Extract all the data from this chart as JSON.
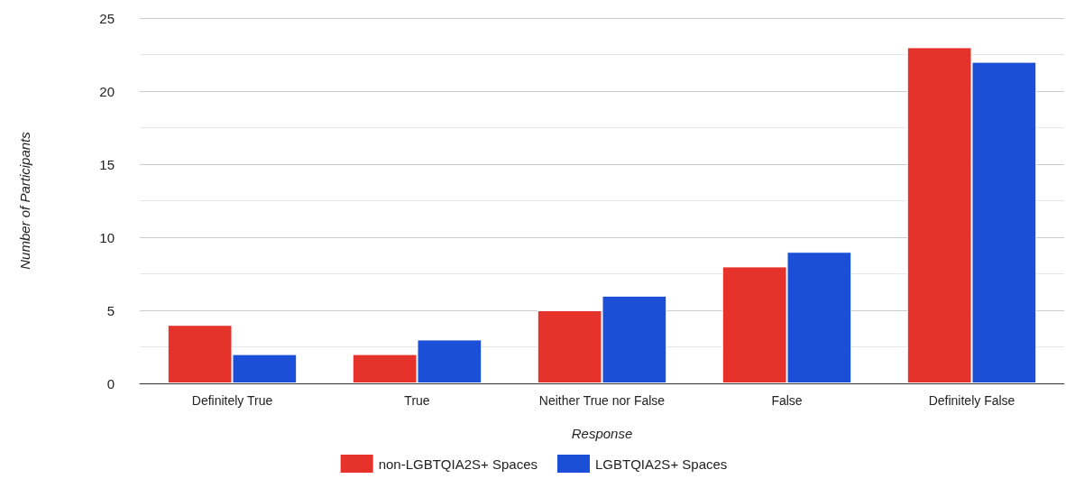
{
  "chart_data": {
    "type": "bar",
    "xlabel": "Response",
    "ylabel": "Number of Participants",
    "categories": [
      "Definitely True",
      "True",
      "Neither True nor False",
      "False",
      "Definitely False"
    ],
    "series": [
      {
        "name": "non-LGBTQIA2S+ Spaces",
        "color": "#e5322a",
        "values": [
          4,
          2,
          5,
          8,
          23
        ]
      },
      {
        "name": "LGBTQIA2S+ Spaces",
        "color": "#1b4fd8",
        "values": [
          2,
          3,
          6,
          9,
          22
        ]
      }
    ],
    "ylim": [
      0,
      25
    ],
    "yticks": [
      0,
      5,
      10,
      15,
      20,
      25
    ],
    "grid": "y",
    "legend": "bottom"
  }
}
